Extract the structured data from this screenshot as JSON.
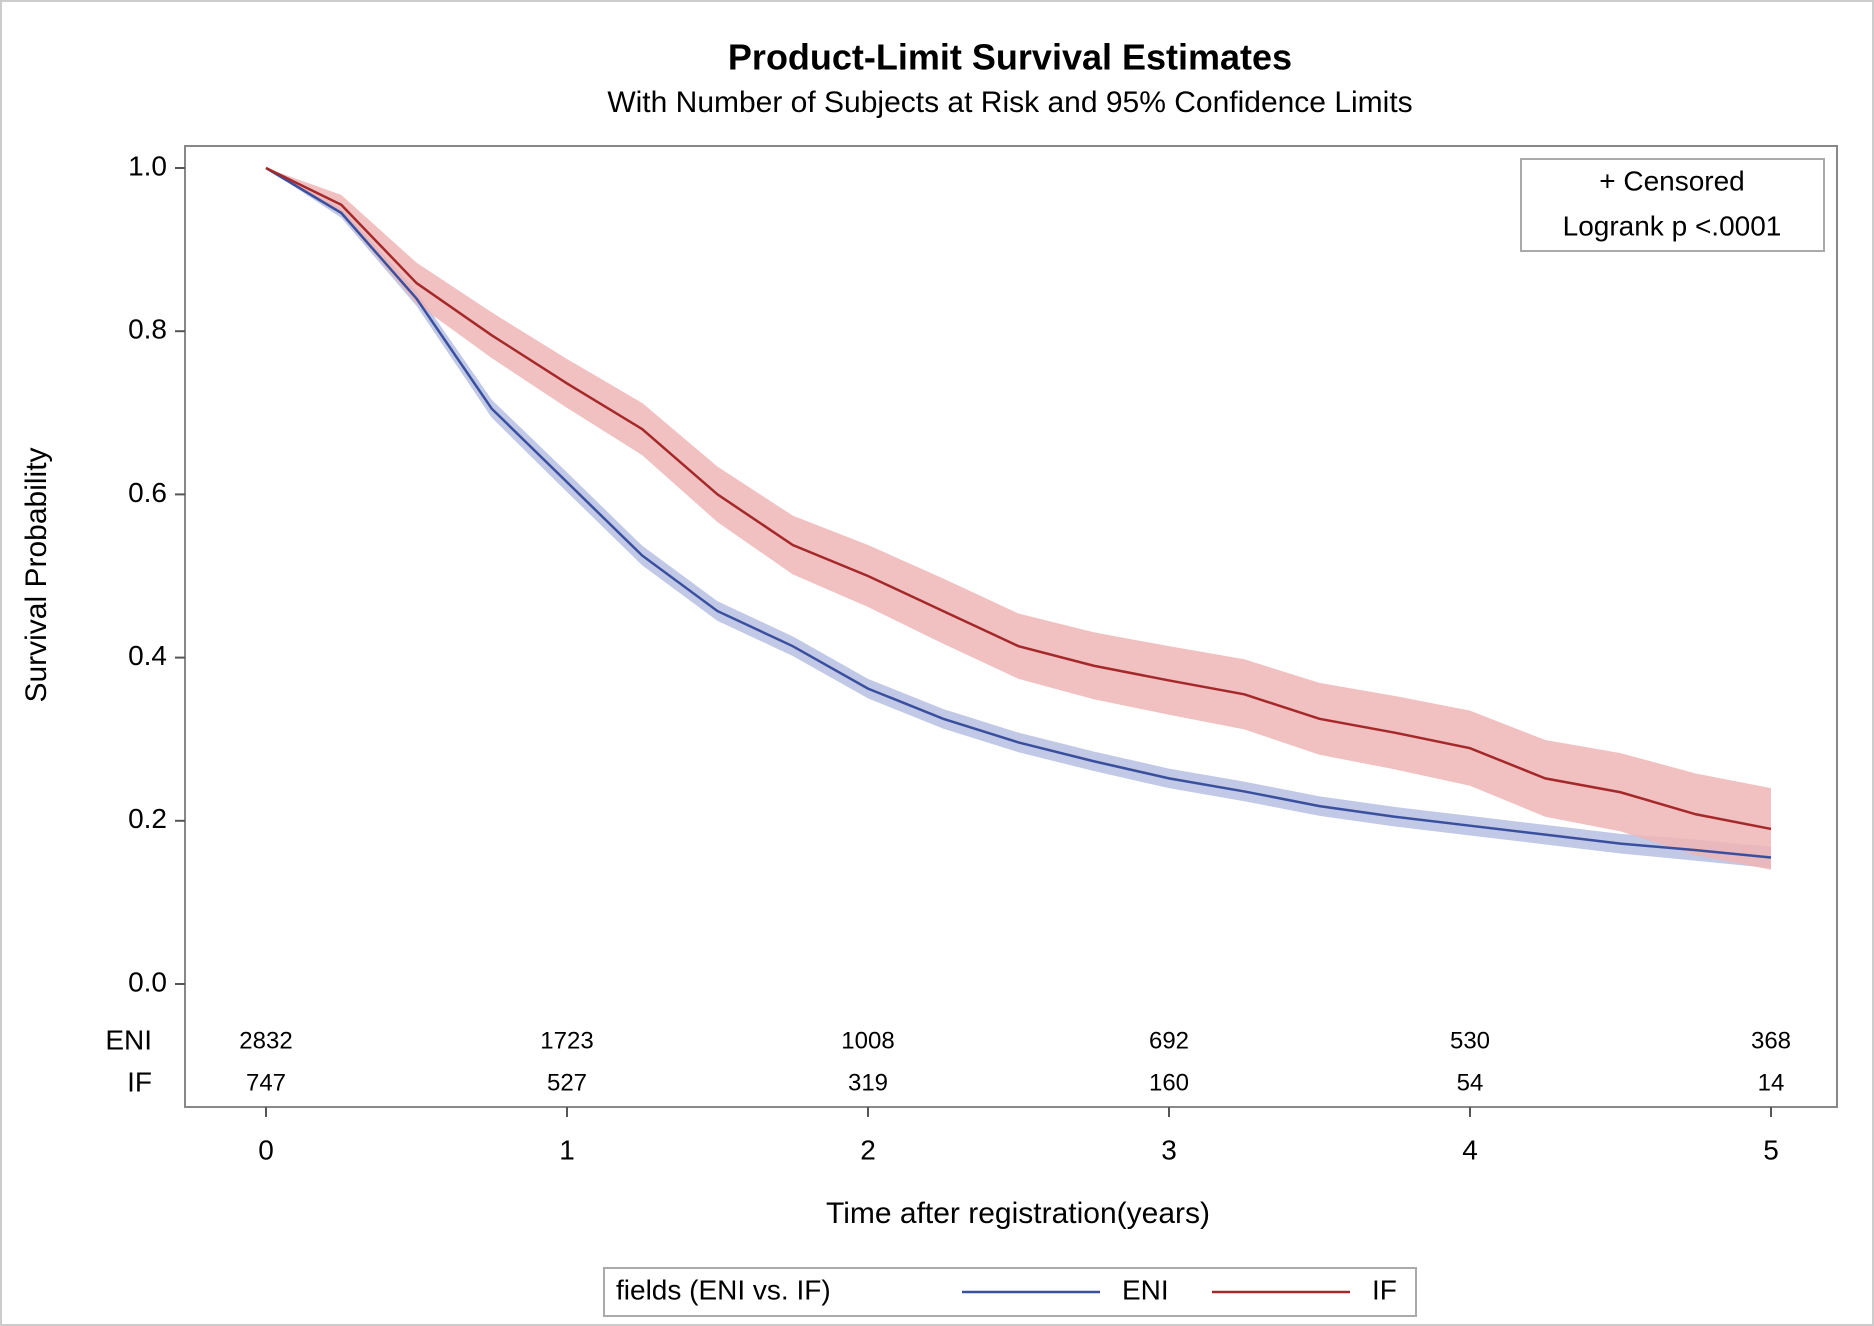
{
  "chart_data": {
    "type": "line",
    "title": "Product-Limit Survival Estimates",
    "subtitle": "With Number of Subjects at Risk and 95% Confidence Limits",
    "x_label": "Time after registration(years)",
    "y_label": "Survival Probability",
    "xlim": [
      0,
      5
    ],
    "ylim": [
      0,
      1
    ],
    "xticks": [
      0,
      1,
      2,
      3,
      4,
      5
    ],
    "yticks": [
      {
        "value": 0,
        "label": "0.0"
      },
      0.2,
      0.4,
      0.6,
      0.8,
      {
        "value": 1,
        "label": "1.0"
      }
    ],
    "x": [
      0,
      0.25,
      0.5,
      0.75,
      1,
      1.25,
      1.5,
      1.75,
      2,
      2.25,
      2.5,
      2.75,
      3,
      3.25,
      3.5,
      3.75,
      4,
      4.25,
      4.5,
      4.75,
      5
    ],
    "series": [
      {
        "name": "ENI",
        "color": "#3a4f9e",
        "band_color": "#b6c0e2",
        "values": [
          1.0,
          0.945,
          0.84,
          0.705,
          0.615,
          0.525,
          0.457,
          0.414,
          0.362,
          0.325,
          0.296,
          0.273,
          0.252,
          0.236,
          0.218,
          0.205,
          0.194,
          0.183,
          0.172,
          0.164,
          0.155
        ],
        "lower": [
          1.0,
          0.939,
          0.831,
          0.694,
          0.603,
          0.513,
          0.445,
          0.402,
          0.35,
          0.313,
          0.284,
          0.261,
          0.24,
          0.224,
          0.206,
          0.193,
          0.182,
          0.171,
          0.16,
          0.151,
          0.142
        ],
        "upper": [
          1.0,
          0.951,
          0.849,
          0.716,
          0.627,
          0.537,
          0.469,
          0.426,
          0.374,
          0.337,
          0.308,
          0.285,
          0.264,
          0.248,
          0.23,
          0.217,
          0.206,
          0.195,
          0.184,
          0.177,
          0.168
        ],
        "at_risk": [
          2832,
          1723,
          1008,
          692,
          530,
          368
        ]
      },
      {
        "name": "IF",
        "color": "#a5282a",
        "band_color": "#efb5b5",
        "values": [
          1.0,
          0.955,
          0.859,
          0.795,
          0.736,
          0.68,
          0.6,
          0.538,
          0.5,
          0.457,
          0.414,
          0.39,
          0.372,
          0.355,
          0.325,
          0.308,
          0.289,
          0.252,
          0.235,
          0.208,
          0.19
        ],
        "lower": [
          1.0,
          0.943,
          0.834,
          0.767,
          0.706,
          0.648,
          0.566,
          0.502,
          0.462,
          0.417,
          0.374,
          0.349,
          0.33,
          0.312,
          0.281,
          0.263,
          0.243,
          0.205,
          0.187,
          0.158,
          0.14
        ],
        "upper": [
          1.0,
          0.967,
          0.884,
          0.823,
          0.766,
          0.712,
          0.634,
          0.574,
          0.538,
          0.497,
          0.454,
          0.431,
          0.414,
          0.398,
          0.369,
          0.353,
          0.335,
          0.299,
          0.283,
          0.258,
          0.24
        ],
        "at_risk": [
          747,
          527,
          319,
          160,
          54,
          14
        ]
      }
    ],
    "inset_legend": [
      "+ Censored",
      "Logrank p <.0001"
    ],
    "legend_title": "fields (ENI vs. IF)"
  }
}
